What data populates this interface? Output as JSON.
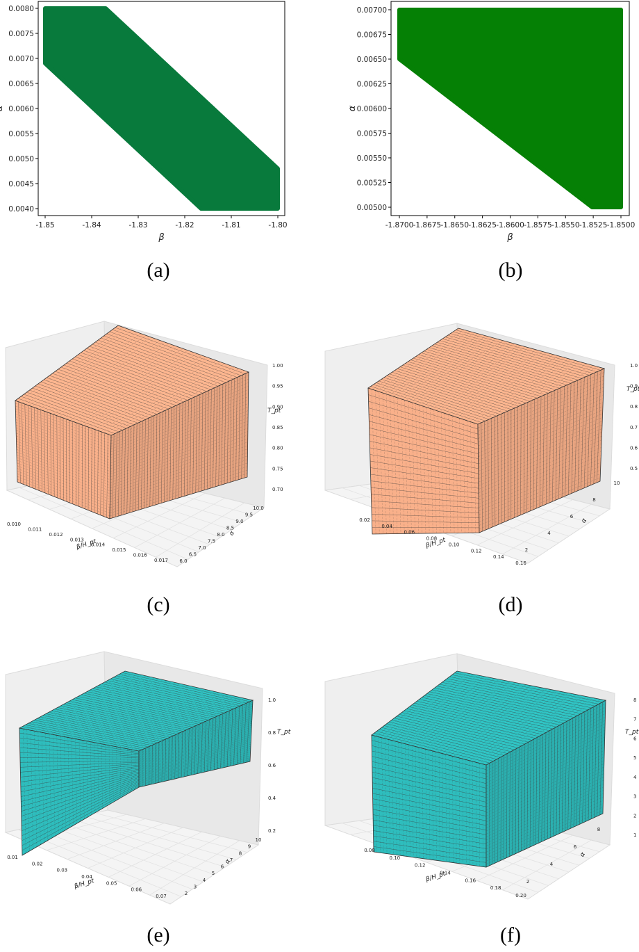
{
  "captions": [
    "(a)",
    "(b)",
    "(c)",
    "(d)",
    "(e)",
    "(f)"
  ],
  "chart_data": [
    {
      "type": "scatter",
      "region_color": "#087a3c",
      "xlabel": "β",
      "ylabel": "α",
      "xlim": [
        -1.85,
        -1.8
      ],
      "ylim": [
        0.004,
        0.008
      ],
      "xticks": [
        "-1.85",
        "-1.84",
        "-1.83",
        "-1.82",
        "-1.81",
        "-1.80"
      ],
      "yticks": [
        "0.0040",
        "0.0045",
        "0.0050",
        "0.0055",
        "0.0060",
        "0.0065",
        "0.0070",
        "0.0075",
        "0.0080"
      ],
      "region": [
        [
          -1.85,
          0.008
        ],
        [
          -1.837,
          0.008
        ],
        [
          -1.8,
          0.0048
        ],
        [
          -1.8,
          0.004
        ],
        [
          -1.8165,
          0.004
        ],
        [
          -1.85,
          0.0069
        ]
      ]
    },
    {
      "type": "scatter",
      "region_color": "#058005",
      "xlabel": "β",
      "ylabel": "α",
      "xlim": [
        -1.87,
        -1.85
      ],
      "ylim": [
        0.005,
        0.007
      ],
      "xticks": [
        "-1.8700",
        "-1.8675",
        "-1.8650",
        "-1.8625",
        "-1.8600",
        "-1.8575",
        "-1.8550",
        "-1.8525",
        "-1.8500"
      ],
      "yticks": [
        "0.00500",
        "0.00525",
        "0.00550",
        "0.00575",
        "0.00600",
        "0.00625",
        "0.00650",
        "0.00675",
        "0.00700"
      ],
      "region": [
        [
          -1.87,
          0.007
        ],
        [
          -1.85,
          0.007
        ],
        [
          -1.85,
          0.005
        ],
        [
          -1.8526,
          0.005
        ],
        [
          -1.87,
          0.0065
        ]
      ]
    },
    {
      "type": "bar3d",
      "bar_color": "#f9b08a",
      "xlabel": "β/H_pt",
      "ylabel": "α",
      "zlabel": "T_pt",
      "xticks": [
        "0.010",
        "0.011",
        "0.012",
        "0.013",
        "0.014",
        "0.015",
        "0.016",
        "0.017"
      ],
      "yticks": [
        "6.0",
        "6.5",
        "7.0",
        "7.5",
        "8.0",
        "8.5",
        "9.0",
        "9.5",
        "10.0"
      ],
      "zticks": [
        "0.70",
        "0.75",
        "0.80",
        "0.85",
        "0.90",
        "0.95",
        "1.00"
      ]
    },
    {
      "type": "bar3d",
      "bar_color": "#f9b08a",
      "xlabel": "β/H_pt",
      "ylabel": "α",
      "zlabel": "T_pt",
      "xticks": [
        "0.02",
        "0.04",
        "0.06",
        "0.08",
        "0.10",
        "0.12",
        "0.14",
        "0.16"
      ],
      "yticks": [
        "2",
        "4",
        "6",
        "8",
        "10"
      ],
      "zticks": [
        "0.5",
        "0.6",
        "0.7",
        "0.8",
        "0.9",
        "1.0"
      ]
    },
    {
      "type": "bar3d",
      "bar_color": "#2ebdbd",
      "xlabel": "β/H_pt",
      "ylabel": "α",
      "zlabel": "T_pt",
      "xticks": [
        "0.01",
        "0.02",
        "0.03",
        "0.04",
        "0.05",
        "0.06",
        "0.07"
      ],
      "yticks": [
        "2",
        "3",
        "4",
        "5",
        "6",
        "7",
        "8",
        "9",
        "10"
      ],
      "zticks": [
        "0.2",
        "0.4",
        "0.6",
        "0.8",
        "1.0"
      ]
    },
    {
      "type": "bar3d",
      "bar_color": "#2ebdbd",
      "xlabel": "β/H_pt",
      "ylabel": "α",
      "zlabel": "T_pt",
      "xticks": [
        "0.08",
        "0.10",
        "0.12",
        "0.14",
        "0.16",
        "0.18",
        "0.20"
      ],
      "yticks": [
        "2",
        "4",
        "6",
        "8"
      ],
      "zticks": [
        "1",
        "2",
        "3",
        "4",
        "5",
        "6",
        "7",
        "8"
      ]
    }
  ]
}
